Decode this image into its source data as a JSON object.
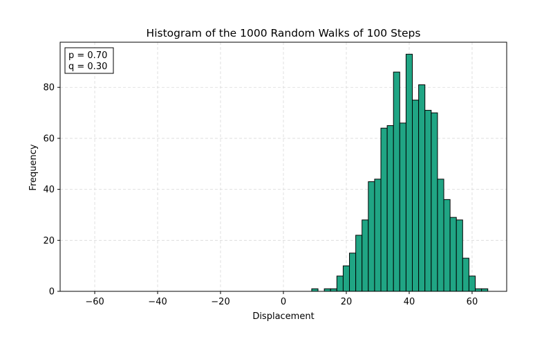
{
  "chart_data": {
    "type": "bar",
    "title": "Histogram of the 1000 Random Walks of 100 Steps",
    "xlabel": "Displacement",
    "ylabel": "Frequency",
    "xlim": [
      -71,
      71
    ],
    "ylim": [
      0,
      97.7
    ],
    "xticks": [
      -60,
      -40,
      -20,
      0,
      20,
      40,
      60
    ],
    "yticks": [
      0,
      20,
      40,
      60,
      80
    ],
    "grid": true,
    "legend_placement": "top-left",
    "annotation": [
      "p = 0.70",
      "q = 0.30"
    ],
    "colors": {
      "bar_fill": "#20a584",
      "bar_edge": "#000000",
      "grid": "#d9d9d9"
    },
    "bin_width": 2,
    "bins": [
      {
        "x": 10,
        "value": 1
      },
      {
        "x": 12,
        "value": 0
      },
      {
        "x": 14,
        "value": 1
      },
      {
        "x": 16,
        "value": 1
      },
      {
        "x": 18,
        "value": 6
      },
      {
        "x": 20,
        "value": 10
      },
      {
        "x": 22,
        "value": 15
      },
      {
        "x": 24,
        "value": 22
      },
      {
        "x": 26,
        "value": 28
      },
      {
        "x": 28,
        "value": 43
      },
      {
        "x": 30,
        "value": 44
      },
      {
        "x": 32,
        "value": 64
      },
      {
        "x": 34,
        "value": 65
      },
      {
        "x": 36,
        "value": 86
      },
      {
        "x": 38,
        "value": 66
      },
      {
        "x": 40,
        "value": 93
      },
      {
        "x": 42,
        "value": 75
      },
      {
        "x": 44,
        "value": 81
      },
      {
        "x": 46,
        "value": 71
      },
      {
        "x": 48,
        "value": 70
      },
      {
        "x": 50,
        "value": 44
      },
      {
        "x": 52,
        "value": 36
      },
      {
        "x": 54,
        "value": 29
      },
      {
        "x": 56,
        "value": 28
      },
      {
        "x": 58,
        "value": 13
      },
      {
        "x": 60,
        "value": 6
      },
      {
        "x": 62,
        "value": 1
      },
      {
        "x": 64,
        "value": 1
      }
    ]
  }
}
